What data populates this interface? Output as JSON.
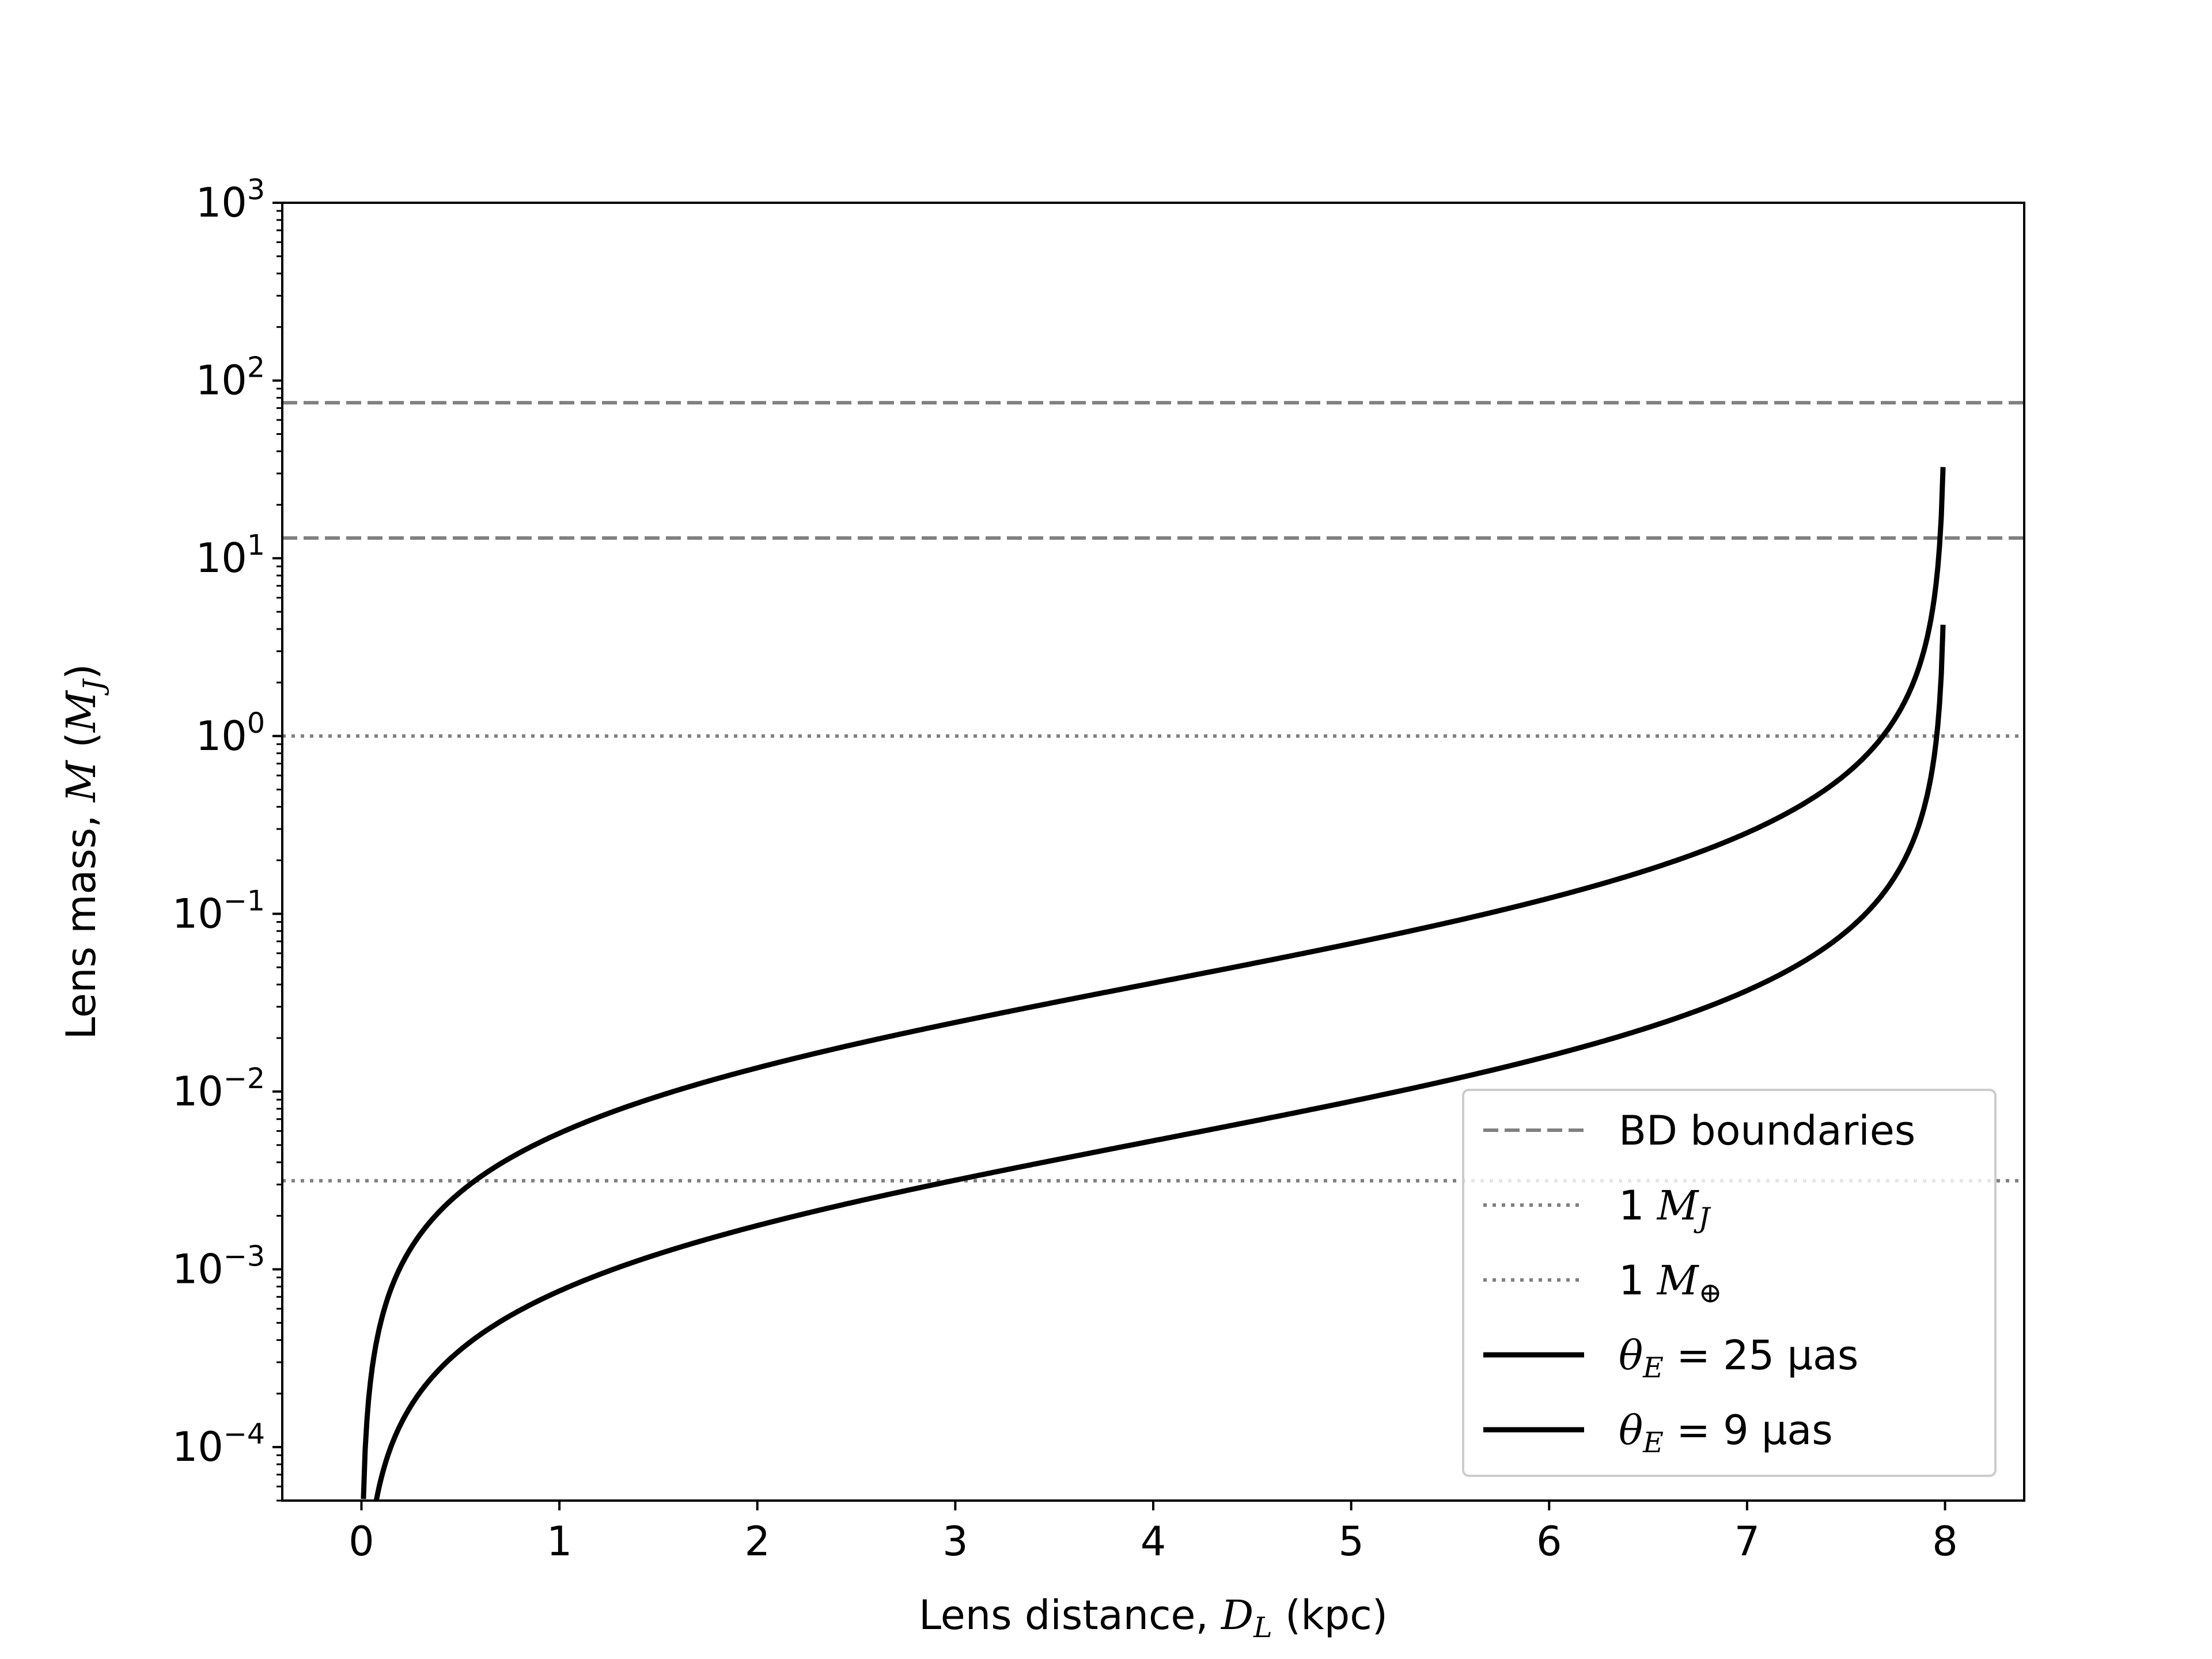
{
  "chart_data": {
    "type": "line",
    "xlabel": {
      "prefix": "Lens distance, ",
      "symbol": "D",
      "subscript": "L",
      "suffix": " (kpc)"
    },
    "ylabel": {
      "prefix": "Lens mass, ",
      "symbol": "M",
      "open": " (",
      "unit": "M",
      "unit_subscript": "J",
      "close": ")"
    },
    "x_scale": "linear",
    "y_scale": "log",
    "xlim": [
      -0.4,
      8.4
    ],
    "ylim": [
      5e-05,
      1000
    ],
    "x_ticks": [
      0,
      1,
      2,
      3,
      4,
      5,
      6,
      7,
      8
    ],
    "x_tick_labels": [
      "0",
      "1",
      "2",
      "3",
      "4",
      "5",
      "6",
      "7",
      "8"
    ],
    "y_ticks": [
      {
        "value": 0.0001,
        "base": "10",
        "exp": "−4"
      },
      {
        "value": 0.001,
        "base": "10",
        "exp": "−3"
      },
      {
        "value": 0.01,
        "base": "10",
        "exp": "−2"
      },
      {
        "value": 0.1,
        "base": "10",
        "exp": "−1"
      },
      {
        "value": 1,
        "base": "10",
        "exp": "0"
      },
      {
        "value": 10,
        "base": "10",
        "exp": "1"
      },
      {
        "value": 100,
        "base": "10",
        "exp": "2"
      },
      {
        "value": 1000,
        "base": "10",
        "exp": "3"
      }
    ],
    "grid": false,
    "legend_position": "lower-right",
    "source_distance_kpc": 8,
    "mass_scale_per_uas2": 8.16e-06,
    "series": [
      {
        "name": "θE = 25 μas",
        "theta_uas": 25,
        "x_range": [
          0.01,
          7.99
        ],
        "color": "#000000",
        "style": "solid",
        "legend": {
          "symbol": "θ",
          "subscript": "E",
          "rest": " = 25 μas"
        }
      },
      {
        "name": "θE = 9 μas",
        "theta_uas": 9,
        "x_range": [
          0.01,
          7.99
        ],
        "color": "#000000",
        "style": "solid",
        "legend": {
          "symbol": "θ",
          "subscript": "E",
          "rest": " = 9 μas"
        }
      }
    ],
    "reference_lines": [
      {
        "group": "BD boundaries",
        "y": 13,
        "color": "#808080",
        "style": "dashed"
      },
      {
        "group": "BD boundaries",
        "y": 75,
        "color": "#808080",
        "style": "dashed"
      },
      {
        "group": "1 MJ",
        "y": 1,
        "color": "#808080",
        "style": "dotted"
      },
      {
        "group": "1 M⊕",
        "y": 0.00315,
        "color": "#808080",
        "style": "dotted"
      }
    ],
    "legend": [
      {
        "style": "dashed",
        "color": "#808080",
        "label": {
          "text": "BD boundaries"
        }
      },
      {
        "style": "dotted",
        "color": "#808080",
        "label": {
          "prefix": "1 ",
          "symbol": "M",
          "subscript": "J"
        }
      },
      {
        "style": "dotted",
        "color": "#808080",
        "label": {
          "prefix": "1 ",
          "symbol": "M",
          "subscript": "⊕"
        }
      },
      {
        "style": "solid",
        "color": "#000000",
        "label": {
          "symbol": "θ",
          "subscript": "E",
          "rest": " = 25 μas"
        }
      },
      {
        "style": "solid",
        "color": "#000000",
        "label": {
          "symbol": "θ",
          "subscript": "E",
          "rest": " = 9 μas"
        }
      }
    ]
  }
}
